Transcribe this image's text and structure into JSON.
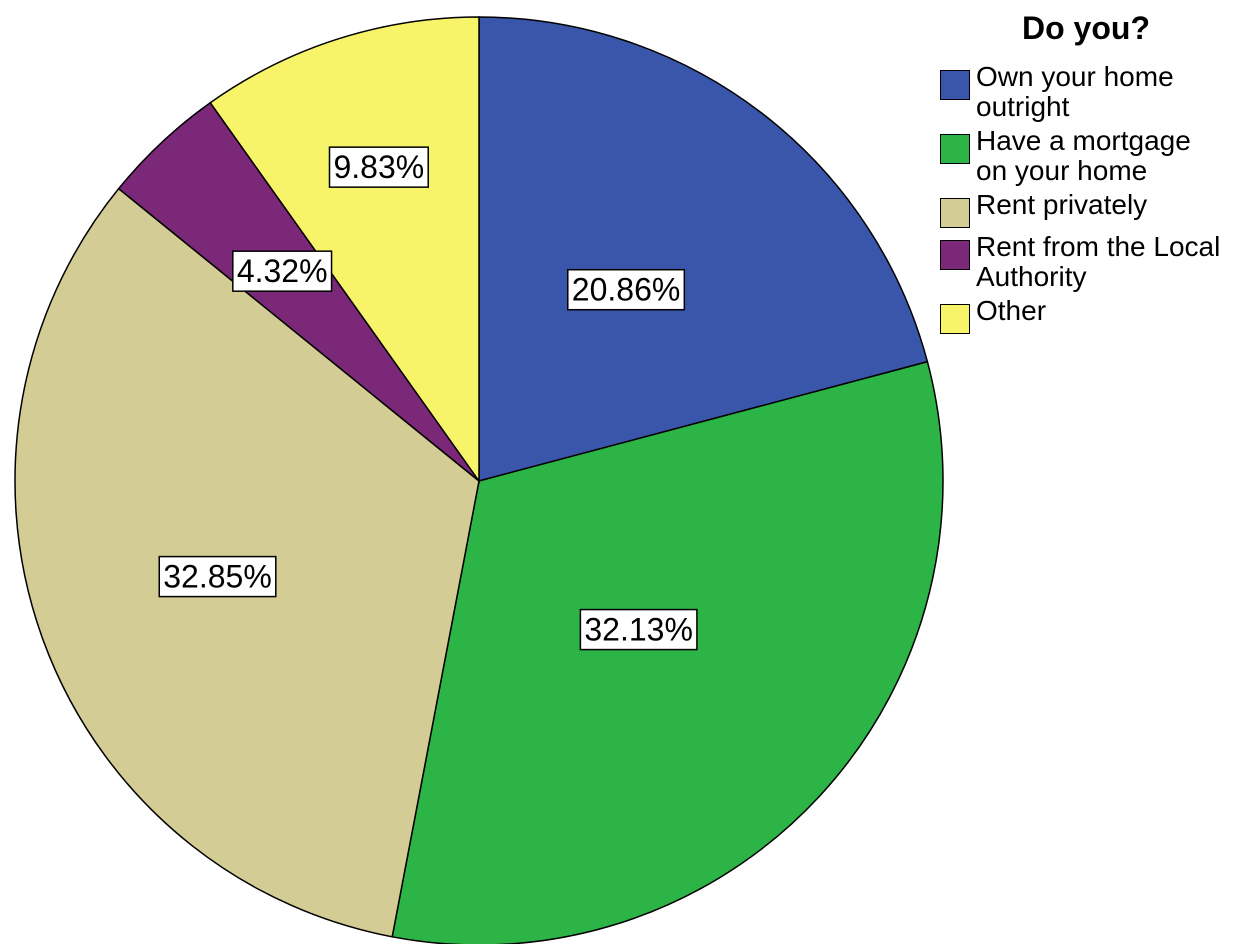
{
  "chart_data": {
    "type": "pie",
    "legend_title": "Do you?",
    "legend_position": "top-right",
    "slices": [
      {
        "label": "Own your home outright",
        "label_lines": [
          "Own your home",
          "outright"
        ],
        "value": 20.86,
        "display": "20.86%",
        "color": "#3a56ab"
      },
      {
        "label": "Have a mortgage on your home",
        "label_lines": [
          "Have a mortgage",
          "on your home"
        ],
        "value": 32.13,
        "display": "32.13%",
        "color": "#2db447"
      },
      {
        "label": "Rent privately",
        "label_lines": [
          "Rent privately"
        ],
        "value": 32.85,
        "display": "32.85%",
        "color": "#d3cd95"
      },
      {
        "label": "Rent from the Local Authority",
        "label_lines": [
          "Rent from the Local",
          "Authority"
        ],
        "value": 4.32,
        "display": "4.32%",
        "color": "#7b2878"
      },
      {
        "label": "Other",
        "label_lines": [
          "Other"
        ],
        "value": 9.83,
        "display": "9.83%",
        "color": "#f8f46a"
      }
    ]
  }
}
